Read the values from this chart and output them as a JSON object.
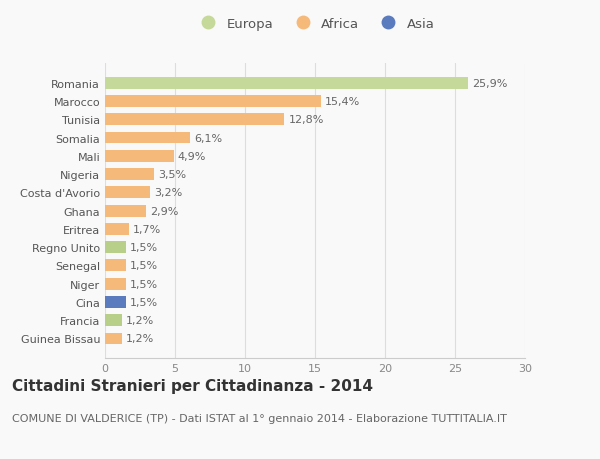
{
  "categories": [
    "Guinea Bissau",
    "Francia",
    "Cina",
    "Niger",
    "Senegal",
    "Regno Unito",
    "Eritrea",
    "Ghana",
    "Costa d'Avorio",
    "Nigeria",
    "Mali",
    "Somalia",
    "Tunisia",
    "Marocco",
    "Romania"
  ],
  "values": [
    1.2,
    1.2,
    1.5,
    1.5,
    1.5,
    1.5,
    1.7,
    2.9,
    3.2,
    3.5,
    4.9,
    6.1,
    12.8,
    15.4,
    25.9
  ],
  "labels": [
    "1,2%",
    "1,2%",
    "1,5%",
    "1,5%",
    "1,5%",
    "1,5%",
    "1,7%",
    "2,9%",
    "3,2%",
    "3,5%",
    "4,9%",
    "6,1%",
    "12,8%",
    "15,4%",
    "25,9%"
  ],
  "colors": [
    "#f5b97a",
    "#b8cf8a",
    "#5b7bbf",
    "#f5b97a",
    "#f5b97a",
    "#b8cf8a",
    "#f5b97a",
    "#f5b97a",
    "#f5b97a",
    "#f5b97a",
    "#f5b97a",
    "#f5b97a",
    "#f5b97a",
    "#f5b97a",
    "#c5d99a"
  ],
  "legend_labels": [
    "Europa",
    "Africa",
    "Asia"
  ],
  "legend_colors": [
    "#c5d99a",
    "#f5b97a",
    "#5b7bbf"
  ],
  "xlim": [
    0,
    30
  ],
  "xticks": [
    0,
    5,
    10,
    15,
    20,
    25,
    30
  ],
  "title": "Cittadini Stranieri per Cittadinanza - 2014",
  "subtitle": "COMUNE DI VALDERICE (TP) - Dati ISTAT al 1° gennaio 2014 - Elaborazione TUTTITALIA.IT",
  "bg_color": "#f9f9f9",
  "bar_height": 0.65,
  "label_fontsize": 8,
  "tick_fontsize": 8,
  "title_fontsize": 11,
  "subtitle_fontsize": 8
}
